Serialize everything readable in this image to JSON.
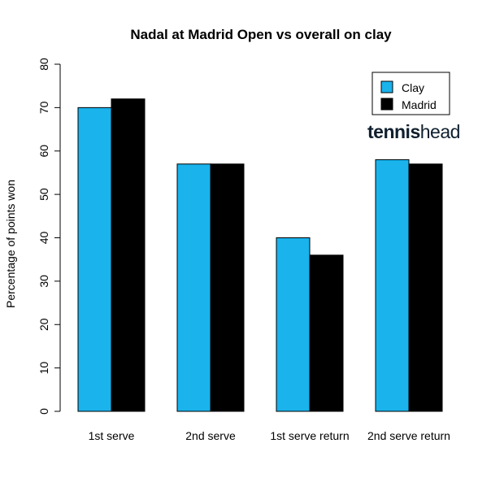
{
  "chart_data": {
    "type": "bar",
    "title": "Nadal at Madrid Open vs overall on clay",
    "xlabel": "",
    "ylabel": "Percentage of points won",
    "categories": [
      "1st serve",
      "2nd serve",
      "1st serve return",
      "2nd serve return"
    ],
    "series": [
      {
        "name": "Clay",
        "color": "#1ab3ec",
        "values": [
          70,
          57,
          40,
          58
        ]
      },
      {
        "name": "Madrid",
        "color": "#000000",
        "values": [
          72,
          57,
          36,
          57
        ]
      }
    ],
    "ylim": [
      0,
      80
    ],
    "yticks": [
      "0",
      "10",
      "20",
      "30",
      "40",
      "50",
      "60",
      "70",
      "80"
    ],
    "grid": false,
    "legend_position": "top-right"
  },
  "logo": {
    "bold": "tennis",
    "regular": "head"
  }
}
